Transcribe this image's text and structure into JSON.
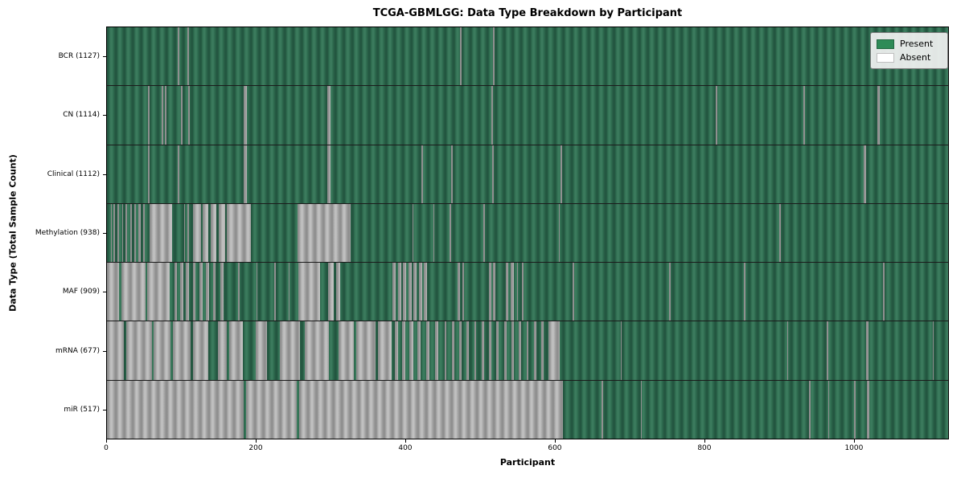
{
  "chart_data": {
    "type": "heatmap",
    "title": "TCGA-GBMLGG: Data Type Breakdown by Participant",
    "xlabel": "Participant",
    "ylabel": "Data Type (Total Sample Count)",
    "x_range": [
      0,
      1127
    ],
    "x_ticks": [
      0,
      200,
      400,
      600,
      800,
      1000
    ],
    "grid": false,
    "legend_position": "upper right",
    "legend": [
      {
        "label": "Present",
        "color": "#2e8b57"
      },
      {
        "label": "Absent",
        "color": "#ffffff"
      }
    ],
    "cell_semantics": "each row is a data type; each participant column is green if that data type is present for the participant, white/gray if absent",
    "rows": [
      {
        "name": "BCR",
        "label": "BCR (1127)",
        "total": 1127,
        "absent_ranges": [
          [
            95,
            97
          ],
          [
            108,
            110
          ],
          [
            473,
            475
          ],
          [
            517,
            519
          ]
        ]
      },
      {
        "name": "CN",
        "label": "CN (1114)",
        "total": 1114,
        "absent_ranges": [
          [
            55,
            57
          ],
          [
            73,
            75
          ],
          [
            78,
            80
          ],
          [
            99,
            101
          ],
          [
            109,
            111
          ],
          [
            183,
            188
          ],
          [
            295,
            300
          ],
          [
            515,
            517
          ],
          [
            816,
            818
          ],
          [
            933,
            935
          ],
          [
            1032,
            1035
          ]
        ]
      },
      {
        "name": "Clinical",
        "label": "Clinical (1112)",
        "total": 1112,
        "absent_ranges": [
          [
            55,
            57
          ],
          [
            95,
            97
          ],
          [
            183,
            188
          ],
          [
            295,
            300
          ],
          [
            421,
            423
          ],
          [
            461,
            463
          ],
          [
            516,
            518
          ],
          [
            608,
            610
          ],
          [
            1014,
            1017
          ]
        ]
      },
      {
        "name": "Methylation",
        "label": "Methylation (938)",
        "total": 938,
        "absent_ranges": [
          [
            5,
            7
          ],
          [
            9,
            11
          ],
          [
            14,
            16
          ],
          [
            20,
            22
          ],
          [
            25,
            27
          ],
          [
            31,
            33
          ],
          [
            37,
            39
          ],
          [
            42,
            45
          ],
          [
            49,
            51
          ],
          [
            57,
            87
          ],
          [
            103,
            105
          ],
          [
            108,
            110
          ],
          [
            115,
            126
          ],
          [
            128,
            136
          ],
          [
            139,
            147
          ],
          [
            150,
            158
          ],
          [
            160,
            193
          ],
          [
            255,
            327
          ],
          [
            409,
            411
          ],
          [
            437,
            439
          ],
          [
            459,
            461
          ],
          [
            504,
            506
          ],
          [
            605,
            607
          ],
          [
            901,
            903
          ]
        ]
      },
      {
        "name": "MAF",
        "label": "MAF (909)",
        "total": 909,
        "absent_ranges": [
          [
            0,
            16
          ],
          [
            19,
            52
          ],
          [
            54,
            84
          ],
          [
            90,
            94
          ],
          [
            98,
            102
          ],
          [
            106,
            110
          ],
          [
            115,
            119
          ],
          [
            124,
            128
          ],
          [
            133,
            137
          ],
          [
            142,
            146
          ],
          [
            152,
            156
          ],
          [
            176,
            178
          ],
          [
            200,
            202
          ],
          [
            224,
            226
          ],
          [
            243,
            245
          ],
          [
            256,
            285
          ],
          [
            296,
            304
          ],
          [
            307,
            313
          ],
          [
            383,
            387
          ],
          [
            390,
            394
          ],
          [
            397,
            401
          ],
          [
            404,
            408
          ],
          [
            411,
            415
          ],
          [
            418,
            422
          ],
          [
            425,
            429
          ],
          [
            470,
            473
          ],
          [
            476,
            478
          ],
          [
            512,
            515
          ],
          [
            517,
            520
          ],
          [
            534,
            538
          ],
          [
            541,
            545
          ],
          [
            549,
            551
          ],
          [
            556,
            558
          ],
          [
            624,
            626
          ],
          [
            753,
            755
          ],
          [
            853,
            855
          ],
          [
            1040,
            1042
          ]
        ]
      },
      {
        "name": "mRNA",
        "label": "mRNA (677)",
        "total": 677,
        "absent_ranges": [
          [
            0,
            23
          ],
          [
            26,
            60
          ],
          [
            63,
            85
          ],
          [
            88,
            112
          ],
          [
            115,
            136
          ],
          [
            149,
            161
          ],
          [
            164,
            182
          ],
          [
            199,
            214
          ],
          [
            232,
            259
          ],
          [
            265,
            297
          ],
          [
            310,
            331
          ],
          [
            334,
            360
          ],
          [
            363,
            381
          ],
          [
            386,
            390
          ],
          [
            395,
            400
          ],
          [
            405,
            410
          ],
          [
            416,
            420
          ],
          [
            428,
            432
          ],
          [
            440,
            444
          ],
          [
            452,
            455
          ],
          [
            462,
            465
          ],
          [
            472,
            475
          ],
          [
            482,
            485
          ],
          [
            492,
            495
          ],
          [
            502,
            505
          ],
          [
            512,
            515
          ],
          [
            522,
            525
          ],
          [
            532,
            535
          ],
          [
            542,
            545
          ],
          [
            552,
            555
          ],
          [
            562,
            565
          ],
          [
            572,
            575
          ],
          [
            582,
            585
          ],
          [
            592,
            607
          ],
          [
            688,
            690
          ],
          [
            911,
            913
          ],
          [
            964,
            966
          ],
          [
            1017,
            1020
          ],
          [
            1106,
            1108
          ]
        ]
      },
      {
        "name": "miR",
        "label": "miR (517)",
        "total": 517,
        "absent_ranges": [
          [
            0,
            183
          ],
          [
            186,
            254
          ],
          [
            257,
            611
          ],
          [
            663,
            665
          ],
          [
            715,
            717
          ],
          [
            941,
            943
          ],
          [
            966,
            968
          ],
          [
            1001,
            1003
          ],
          [
            1018,
            1021
          ]
        ]
      }
    ]
  },
  "colors": {
    "present": "#2e8b57",
    "absent": "#ffffff",
    "present_texture_dark": "#235640",
    "present_texture_mid": "#2e6b4f",
    "present_texture_light": "#3b7b5d",
    "absent_texture_dark": "#8f8f8f",
    "absent_texture_mid": "#a9a9a9",
    "absent_texture_light": "#c0c0c0",
    "axis": "#000000",
    "legend_bg": "#f2f2f2",
    "legend_border": "#7a7a7a"
  }
}
